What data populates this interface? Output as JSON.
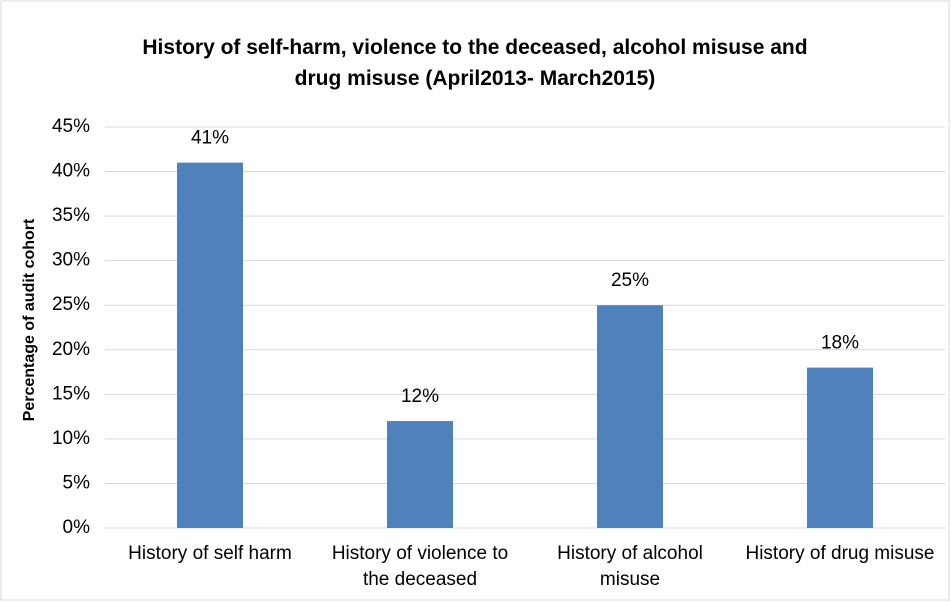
{
  "chart_data": {
    "type": "bar",
    "title": "History of self-harm, violence to the deceased, alcohol misuse and drug misuse (April2013- March2015)",
    "y_label": "Percentage of audit cohort",
    "categories": [
      "History of self harm",
      "History of violence to the deceased",
      "History of alcohol misuse",
      "History of drug misuse"
    ],
    "values": [
      41,
      12,
      25,
      18
    ],
    "value_labels": [
      "41%",
      "12%",
      "25%",
      "18%"
    ],
    "color": "#4f81bd",
    "ylim": [
      0,
      45
    ],
    "yticks": [
      {
        "value": 0,
        "label": "0%"
      },
      {
        "value": 5,
        "label": "5%"
      },
      {
        "value": 10,
        "label": "10%"
      },
      {
        "value": 15,
        "label": "15%"
      },
      {
        "value": 20,
        "label": "20%"
      },
      {
        "value": 25,
        "label": "25%"
      },
      {
        "value": 30,
        "label": "30%"
      },
      {
        "value": 35,
        "label": "35%"
      },
      {
        "value": 40,
        "label": "40%"
      },
      {
        "value": 45,
        "label": "45%"
      }
    ],
    "grid": true
  }
}
